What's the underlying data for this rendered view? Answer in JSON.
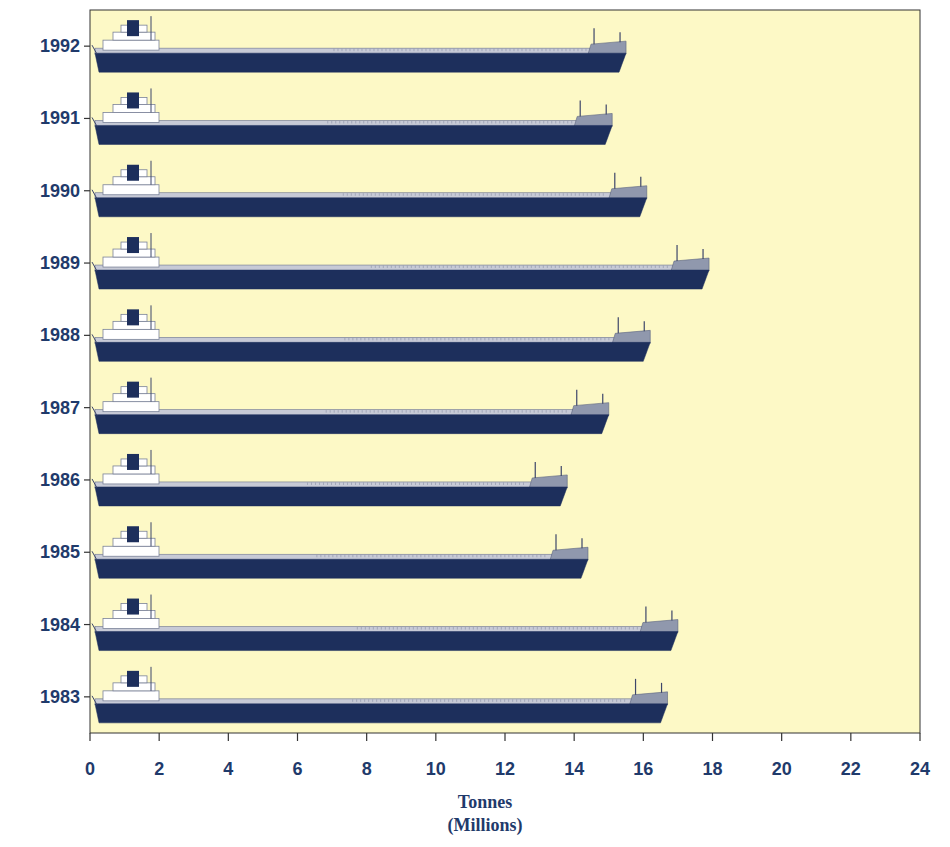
{
  "chart_data": {
    "type": "bar",
    "orientation": "horizontal",
    "x_label": "Tonnes (Millions)",
    "categories": [
      "1983",
      "1984",
      "1985",
      "1986",
      "1987",
      "1988",
      "1989",
      "1990",
      "1991",
      "1992"
    ],
    "values": [
      16.7,
      17.0,
      14.4,
      13.8,
      15.0,
      16.2,
      17.9,
      16.1,
      15.1,
      15.5
    ],
    "color": "#1d2f5c",
    "xlim": [
      0,
      24
    ],
    "xticks": [
      0,
      2,
      4,
      6,
      8,
      10,
      12,
      14,
      16,
      18,
      20,
      22,
      24
    ],
    "grid": false
  }
}
